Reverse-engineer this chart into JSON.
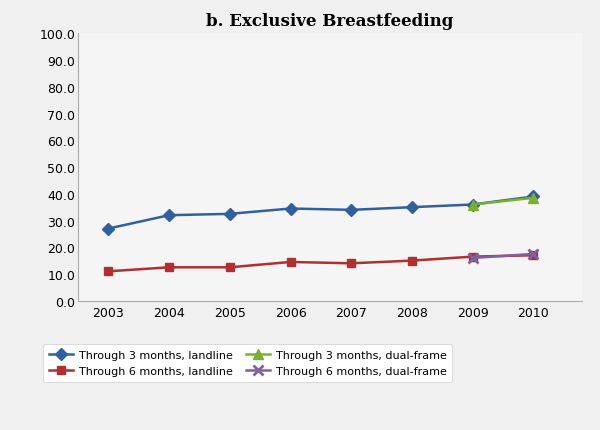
{
  "title": "b. Exclusive Breastfeeding",
  "years": [
    2003,
    2004,
    2005,
    2006,
    2007,
    2008,
    2009,
    2010
  ],
  "series": [
    {
      "key": "through_3_landline",
      "label": "Through 3 months, landline",
      "values": [
        27.0,
        32.0,
        32.5,
        34.5,
        34.0,
        35.0,
        36.0,
        39.0
      ],
      "color": "#3060A0",
      "marker": "D",
      "linestyle": "-",
      "linewidth": 1.8,
      "markersize": 6
    },
    {
      "key": "through_6_landline",
      "label": "Through 6 months, landline",
      "values": [
        11.0,
        12.5,
        12.5,
        14.5,
        14.0,
        15.0,
        16.5,
        17.0
      ],
      "color": "#B03030",
      "marker": "s",
      "linestyle": "-",
      "linewidth": 1.8,
      "markersize": 6
    },
    {
      "key": "through_3_dualframe",
      "label": "Through 3 months, dual-frame",
      "values": [
        null,
        null,
        null,
        null,
        null,
        null,
        36.0,
        38.5
      ],
      "color": "#7AB030",
      "marker": "^",
      "linestyle": "-",
      "linewidth": 1.8,
      "markersize": 7
    },
    {
      "key": "through_6_dualframe",
      "label": "Through 6 months, dual-frame",
      "values": [
        null,
        null,
        null,
        null,
        null,
        null,
        16.0,
        17.5
      ],
      "color": "#8060A0",
      "marker": "x",
      "linestyle": "-",
      "linewidth": 1.8,
      "markersize": 7,
      "markeredgewidth": 2
    }
  ],
  "ylim": [
    0.0,
    100.0
  ],
  "yticks": [
    0.0,
    10.0,
    20.0,
    30.0,
    40.0,
    50.0,
    60.0,
    70.0,
    80.0,
    90.0,
    100.0
  ],
  "xlim": [
    2002.5,
    2010.8
  ],
  "background_color": "#f0f0f0",
  "plot_bg_color": "#f5f5f5",
  "title_fontsize": 12,
  "tick_fontsize": 9,
  "legend_fontsize": 8
}
